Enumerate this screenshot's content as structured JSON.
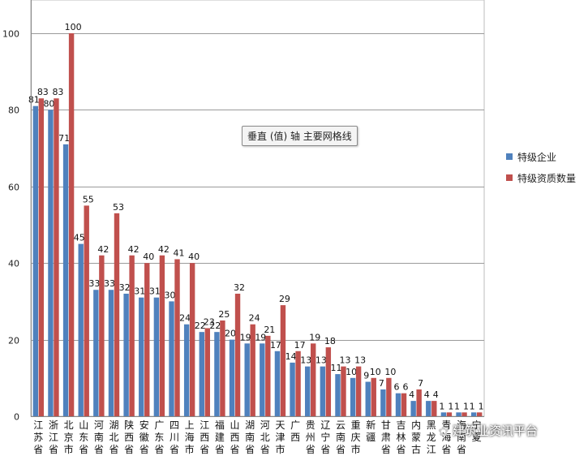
{
  "chart_data": {
    "type": "bar",
    "categories": [
      "江苏省",
      "浙江省",
      "北京市",
      "山东省",
      "河南省",
      "湖北省",
      "陕西省",
      "安徽省",
      "广东省",
      "四川省",
      "上海市",
      "江西省",
      "福建省",
      "山西省",
      "湖南省",
      "河北省",
      "天津市",
      "广西",
      "贵州省",
      "辽宁省",
      "云南省",
      "重庆市",
      "新疆",
      "甘肃省",
      "吉林省",
      "内蒙古",
      "黑龙江",
      "青海省",
      "海南省",
      "宁夏"
    ],
    "series": [
      {
        "name": "特级企业",
        "color": "#4f81bd",
        "values": [
          81,
          80,
          71,
          45,
          33,
          33,
          32,
          31,
          31,
          30,
          24,
          22,
          22,
          20,
          19,
          19,
          17,
          14,
          13,
          13,
          11,
          10,
          9,
          7,
          6,
          4,
          4,
          1,
          1,
          1
        ]
      },
      {
        "name": "特级资质数量",
        "color": "#c0504d",
        "values": [
          83,
          83,
          100,
          55,
          42,
          53,
          42,
          40,
          42,
          41,
          40,
          23,
          25,
          32,
          24,
          21,
          29,
          17,
          19,
          18,
          13,
          13,
          10,
          10,
          6,
          7,
          4,
          1,
          1,
          1
        ]
      }
    ],
    "yticks": [
      0,
      20,
      40,
      60,
      80,
      100
    ],
    "ylim": [
      0,
      100
    ],
    "legend": "right",
    "grid": true
  },
  "tooltip_text": "垂直 (值) 轴 主要网格线",
  "watermark_text": "建筑业资讯平台"
}
